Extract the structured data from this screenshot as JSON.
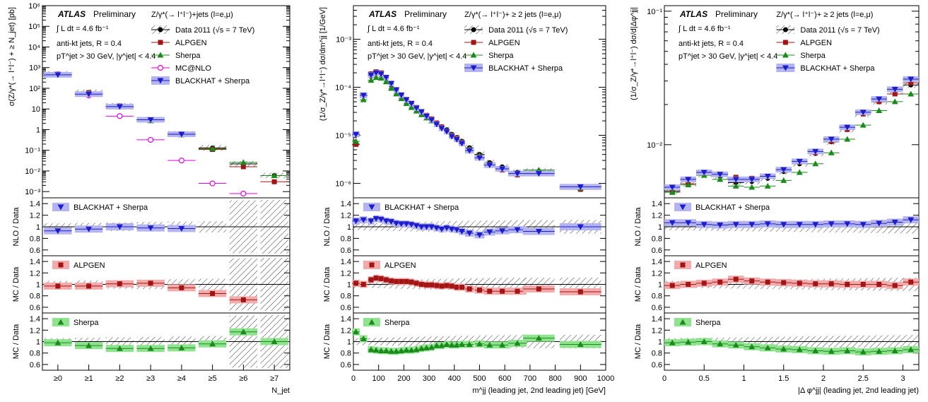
{
  "colors": {
    "data": "#000000",
    "alpgen": "#a31515",
    "alpgen_band": "#f2aaaa",
    "sherpa": "#1a8a1a",
    "sherpa_band": "#8fe38f",
    "mcnlo": "#e600e6",
    "blackhat": "#1c1ccc",
    "blackhat_band": "#b4b4f0"
  },
  "chart_data": [
    {
      "type": "scatter",
      "id": "njet",
      "log_y": true,
      "ylim": [
        0.0005,
        1000000
      ],
      "ylabel": "σ(Z/γ*(→ l⁺l⁻) + ≥ N_jet) [pb]",
      "xlabel": "N_jet",
      "categories": [
        "≥0",
        "≥1",
        "≥2",
        "≥3",
        "≥4",
        "≥5",
        "≥6",
        "≥7"
      ],
      "y_ticks": [
        "10⁻³",
        "10⁻²",
        "10⁻¹",
        "1",
        "10",
        "10²",
        "10³",
        "10⁴",
        "10⁵",
        "10⁶"
      ],
      "atlas_label": "ATLAS",
      "prelim_label": "Preliminary",
      "lumi_label": "∫ L dt = 4.6 fb⁻¹",
      "jets_label": "anti-kt jets, R = 0.4",
      "cuts_label": "pT^jet > 30 GeV, |y^jet| < 4.4",
      "process_label": "Z/γ*(→ l⁺l⁻)+jets (l=e,μ)",
      "legend": [
        "Data 2011 (√s = 7 TeV)",
        "ALPGEN",
        "Sherpa",
        "MC@NLO",
        "BLACKHAT + Sherpa"
      ],
      "series": [
        {
          "key": "data",
          "values": [
            480,
            63,
            14,
            3,
            0.62,
            0.13,
            0.022,
            0.006
          ]
        },
        {
          "key": "alpgen",
          "values": [
            480,
            62,
            14,
            3,
            0.58,
            0.11,
            0.016,
            0.003
          ]
        },
        {
          "key": "sherpa",
          "values": [
            480,
            58,
            12.5,
            2.7,
            0.56,
            0.12,
            0.026,
            0.006
          ]
        },
        {
          "key": "mcnlo",
          "values": [
            480,
            45,
            4.5,
            0.32,
            0.032,
            0.0025,
            0.0008
          ]
        },
        {
          "key": "blackhat",
          "values": [
            450,
            52,
            13,
            3,
            0.6
          ]
        }
      ],
      "ratio_ylabels": [
        "NLO / Data",
        "MC / Data",
        "MC / Data"
      ],
      "ratio_ticks": [
        "0.6",
        "0.8",
        "1",
        "1.2",
        "1.4"
      ],
      "ratio_labels": [
        "BLACKHAT + Sherpa",
        "ALPGEN",
        "Sherpa"
      ],
      "ratios": {
        "blackhat": [
          0.93,
          0.96,
          1.0,
          0.98,
          0.97
        ],
        "alpgen": [
          0.97,
          0.97,
          1.01,
          1.02,
          0.94,
          0.84,
          0.73
        ],
        "sherpa": [
          0.98,
          0.93,
          0.88,
          0.88,
          0.89,
          0.96,
          1.17,
          1.0
        ]
      }
    },
    {
      "type": "scatter",
      "id": "mjj",
      "log_y": true,
      "ylim": [
        5e-07,
        0.005
      ],
      "ylabel": "(1/σ_Z/γ*→l⁺l⁻) dσ/dm^jj [1/GeV]",
      "xlabel": "m^jj (leading jet, 2nd leading jet) [GeV]",
      "xlim": [
        0,
        1000
      ],
      "x_ticks": [
        "0",
        "100",
        "200",
        "300",
        "400",
        "500",
        "600",
        "700",
        "800",
        "900",
        "1000"
      ],
      "y_ticks": [
        "10⁻⁶",
        "10⁻⁵",
        "10⁻⁴",
        "10⁻³"
      ],
      "atlas_label": "ATLAS",
      "prelim_label": "Preliminary",
      "lumi_label": "∫ L dt = 4.6 fb⁻¹",
      "jets_label": "anti-kt jets, R = 0.4",
      "cuts_label": "pT^jet > 30 GeV, |y^jet| < 4.4",
      "process_label": "Z/γ*(→ l⁺l⁻)+ ≥ 2 jets (l=e,μ)",
      "legend": [
        "Data 2011 (√s = 7 TeV)",
        "ALPGEN",
        "Sherpa",
        "BLACKHAT + Sherpa"
      ],
      "bins_x": [
        10,
        40,
        70,
        90,
        110,
        130,
        150,
        170,
        190,
        210,
        230,
        250,
        270,
        290,
        310,
        330,
        350,
        370,
        390,
        410,
        430,
        460,
        500,
        540,
        590,
        650,
        735,
        900
      ],
      "series": [
        {
          "key": "data",
          "values": [
            6.5e-06,
            6.5e-05,
            0.00017,
            0.00019,
            0.00018,
            0.00015,
            0.00011,
            8.5e-05,
            6.8e-05,
            5.3e-05,
            4.5e-05,
            3.7e-05,
            3.1e-05,
            2.6e-05,
            2.2e-05,
            1.8e-05,
            1.5e-05,
            1.3e-05,
            1.05e-05,
            9e-06,
            7.5e-06,
            5.5e-06,
            4e-06,
            2.7e-06,
            2.2e-06,
            1.7e-06,
            1.8e-06,
            8.5e-07
          ]
        },
        {
          "key": "alpgen",
          "values": [
            6.5e-06,
            6.8e-05,
            0.00019,
            0.00021,
            0.0002,
            0.00016,
            0.00012,
            9e-05,
            7e-05,
            5.6e-05,
            4.7e-05,
            3.8e-05,
            3.1e-05,
            2.6e-05,
            2.2e-05,
            1.8e-05,
            1.5e-05,
            1.2e-05,
            1.01e-05,
            8.8e-06,
            7.2e-06,
            5e-06,
            3.6e-06,
            2.4e-06,
            1.9e-06,
            1.5e-06,
            1.7e-06,
            7.5e-07
          ]
        },
        {
          "key": "sherpa",
          "values": [
            7.5e-06,
            5.5e-05,
            0.00014,
            0.00016,
            0.000155,
            0.00013,
            9.5e-05,
            7.3e-05,
            5.8e-05,
            4.6e-05,
            3.8e-05,
            3.2e-05,
            2.7e-05,
            2.3e-05,
            2e-05,
            1.7e-05,
            1.4e-05,
            1.2e-05,
            1e-05,
            8.5e-06,
            7.2e-06,
            5.2e-06,
            3.8e-06,
            2.5e-06,
            2e-06,
            1.6e-06,
            1.9e-06,
            8e-07
          ]
        },
        {
          "key": "blackhat",
          "values": [
            1.05e-05,
            6.8e-05,
            0.00018,
            0.0002,
            0.00019,
            0.00016,
            0.00012,
            8.8e-05,
            6.9e-05,
            5.5e-05,
            4.6e-05,
            3.7e-05,
            3.1e-05,
            2.5e-05,
            2.1e-05,
            1.7e-05,
            1.4e-05,
            1.2e-05,
            9.5e-06,
            8.2e-06,
            6.8e-06,
            4.8e-06,
            3.4e-06,
            2.4e-06,
            2e-06,
            1.6e-06,
            1.6e-06,
            8.5e-07
          ]
        }
      ],
      "ratio_ylabels": [
        "NLO / Data",
        "MC / Data",
        "MC / Data"
      ],
      "ratio_ticks": [
        "0.6",
        "0.8",
        "1",
        "1.2",
        "1.4"
      ],
      "ratio_labels": [
        "BLACKHAT + Sherpa",
        "ALPGEN",
        "Sherpa"
      ],
      "ratios": {
        "blackhat": [
          1.1,
          1.12,
          1.1,
          1.14,
          1.13,
          1.1,
          1.09,
          1.06,
          1.05,
          1.05,
          1.04,
          1.02,
          1.0,
          1.0,
          1.0,
          0.98,
          0.96,
          0.98,
          0.96,
          0.95,
          0.92,
          0.89,
          0.86,
          0.91,
          0.93,
          0.95,
          0.92,
          1.0
        ],
        "alpgen": [
          1.02,
          1.0,
          1.08,
          1.11,
          1.1,
          1.08,
          1.06,
          1.05,
          1.05,
          1.05,
          1.04,
          1.02,
          1.0,
          0.99,
          0.99,
          0.98,
          0.97,
          0.98,
          0.97,
          0.95,
          0.95,
          0.92,
          0.9,
          0.88,
          0.88,
          0.88,
          0.92,
          0.87
        ],
        "sherpa": [
          1.17,
          1.05,
          0.86,
          0.85,
          0.84,
          0.84,
          0.83,
          0.83,
          0.84,
          0.85,
          0.85,
          0.86,
          0.88,
          0.89,
          0.9,
          0.93,
          0.93,
          0.95,
          0.94,
          0.94,
          0.95,
          0.95,
          0.96,
          0.94,
          0.94,
          0.97,
          1.06,
          0.95
        ]
      }
    },
    {
      "type": "scatter",
      "id": "dphi",
      "log_y": true,
      "ylim": [
        0.004,
        0.11
      ],
      "ylabel": "(1/σ_Z/γ*→l⁺l⁻) dσ/d|Δφ^jj|",
      "xlabel": "|Δ φ^jj| (leading jet, 2nd leading jet)",
      "xlim": [
        0,
        3.2
      ],
      "x_ticks": [
        "0",
        "0.5",
        "1",
        "1.5",
        "2",
        "2.5",
        "3"
      ],
      "y_ticks": [
        "10⁻²",
        "10⁻¹"
      ],
      "atlas_label": "ATLAS",
      "prelim_label": "Preliminary",
      "lumi_label": "∫ L dt = 4.6 fb⁻¹",
      "jets_label": "anti-kt jets, R = 0.4",
      "cuts_label": "pT^jet > 30 GeV, |y^jet| < 4.4",
      "process_label": "Z/γ*(→ l⁺l⁻)+ ≥ 2 jets (l=e,μ)",
      "legend": [
        "Data 2011 (√s = 7 TeV)",
        "ALPGEN",
        "Sherpa",
        "BLACKHAT + Sherpa"
      ],
      "bins_x": [
        0.1,
        0.3,
        0.5,
        0.7,
        0.9,
        1.1,
        1.3,
        1.5,
        1.7,
        1.9,
        2.1,
        2.3,
        2.5,
        2.7,
        2.9,
        3.1
      ],
      "series": [
        {
          "key": "data",
          "values": [
            0.0045,
            0.0051,
            0.006,
            0.0058,
            0.0052,
            0.0053,
            0.0056,
            0.0063,
            0.0072,
            0.0086,
            0.0105,
            0.013,
            0.017,
            0.021,
            0.025,
            0.028
          ]
        },
        {
          "key": "alpgen",
          "values": [
            0.0044,
            0.0051,
            0.0061,
            0.006,
            0.0057,
            0.0056,
            0.0058,
            0.0065,
            0.0074,
            0.0087,
            0.0106,
            0.013,
            0.017,
            0.021,
            0.024,
            0.029
          ]
        },
        {
          "key": "sherpa",
          "values": [
            0.0044,
            0.005,
            0.0059,
            0.0055,
            0.0049,
            0.0048,
            0.0049,
            0.0054,
            0.0062,
            0.0072,
            0.0087,
            0.011,
            0.014,
            0.018,
            0.021,
            0.024
          ]
        },
        {
          "key": "blackhat",
          "values": [
            0.0048,
            0.0055,
            0.0062,
            0.006,
            0.0055,
            0.0055,
            0.0058,
            0.0065,
            0.0075,
            0.0089,
            0.011,
            0.0135,
            0.0175,
            0.022,
            0.026,
            0.031
          ]
        }
      ],
      "ratio_ylabels": [
        "NLO / Data",
        "MC / Data",
        "MC / Data"
      ],
      "ratio_ticks": [
        "0.6",
        "0.8",
        "1",
        "1.2",
        "1.4"
      ],
      "ratio_labels": [
        "BLACKHAT + Sherpa",
        "ALPGEN",
        "Sherpa"
      ],
      "ratios": {
        "blackhat": [
          1.07,
          1.07,
          1.04,
          1.03,
          1.04,
          1.04,
          1.05,
          1.04,
          1.04,
          1.04,
          1.05,
          1.05,
          1.04,
          1.06,
          1.08,
          1.12
        ],
        "alpgen": [
          0.98,
          1.0,
          1.02,
          1.04,
          1.09,
          1.06,
          1.04,
          1.03,
          1.02,
          1.01,
          1.01,
          1.0,
          1.0,
          1.0,
          0.98,
          1.04
        ],
        "sherpa": [
          0.98,
          0.99,
          1.0,
          0.96,
          0.94,
          0.91,
          0.89,
          0.87,
          0.86,
          0.84,
          0.83,
          0.84,
          0.82,
          0.83,
          0.84,
          0.86
        ]
      }
    }
  ]
}
